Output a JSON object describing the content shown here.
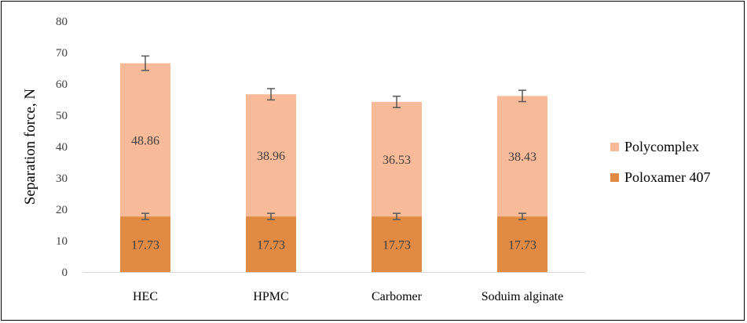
{
  "chart_data": {
    "type": "bar",
    "stacked": true,
    "categories": [
      "HEC",
      "HPMC",
      "Carbomer",
      "Soduim alginate"
    ],
    "series": [
      {
        "name": "Poloxamer 407",
        "values": [
          17.73,
          17.73,
          17.73,
          17.73
        ],
        "errors": [
          1.0,
          1.0,
          1.0,
          1.0
        ],
        "labels": [
          "17.73",
          "17.73",
          "17.73",
          "17.73"
        ],
        "color": "#E08A43"
      },
      {
        "name": "Polycomplex",
        "values": [
          48.86,
          38.96,
          36.53,
          38.43
        ],
        "errors": [
          2.3,
          1.8,
          1.8,
          1.8
        ],
        "labels": [
          "48.86",
          "38.96",
          "36.53",
          "38.43"
        ],
        "color": "#F8BA98"
      }
    ],
    "title": "",
    "xlabel": "",
    "ylabel": "Separation force, N",
    "ylim": [
      0,
      80
    ],
    "yticks": [
      "0",
      "10",
      "20",
      "30",
      "40",
      "50",
      "60",
      "70",
      "80"
    ],
    "grid": false,
    "legend": {
      "position": "right",
      "entries": [
        "Polycomplex",
        "Poloxamer 407"
      ]
    },
    "error_bar_color": "#595959",
    "axis_color": "#D9D9D9"
  }
}
